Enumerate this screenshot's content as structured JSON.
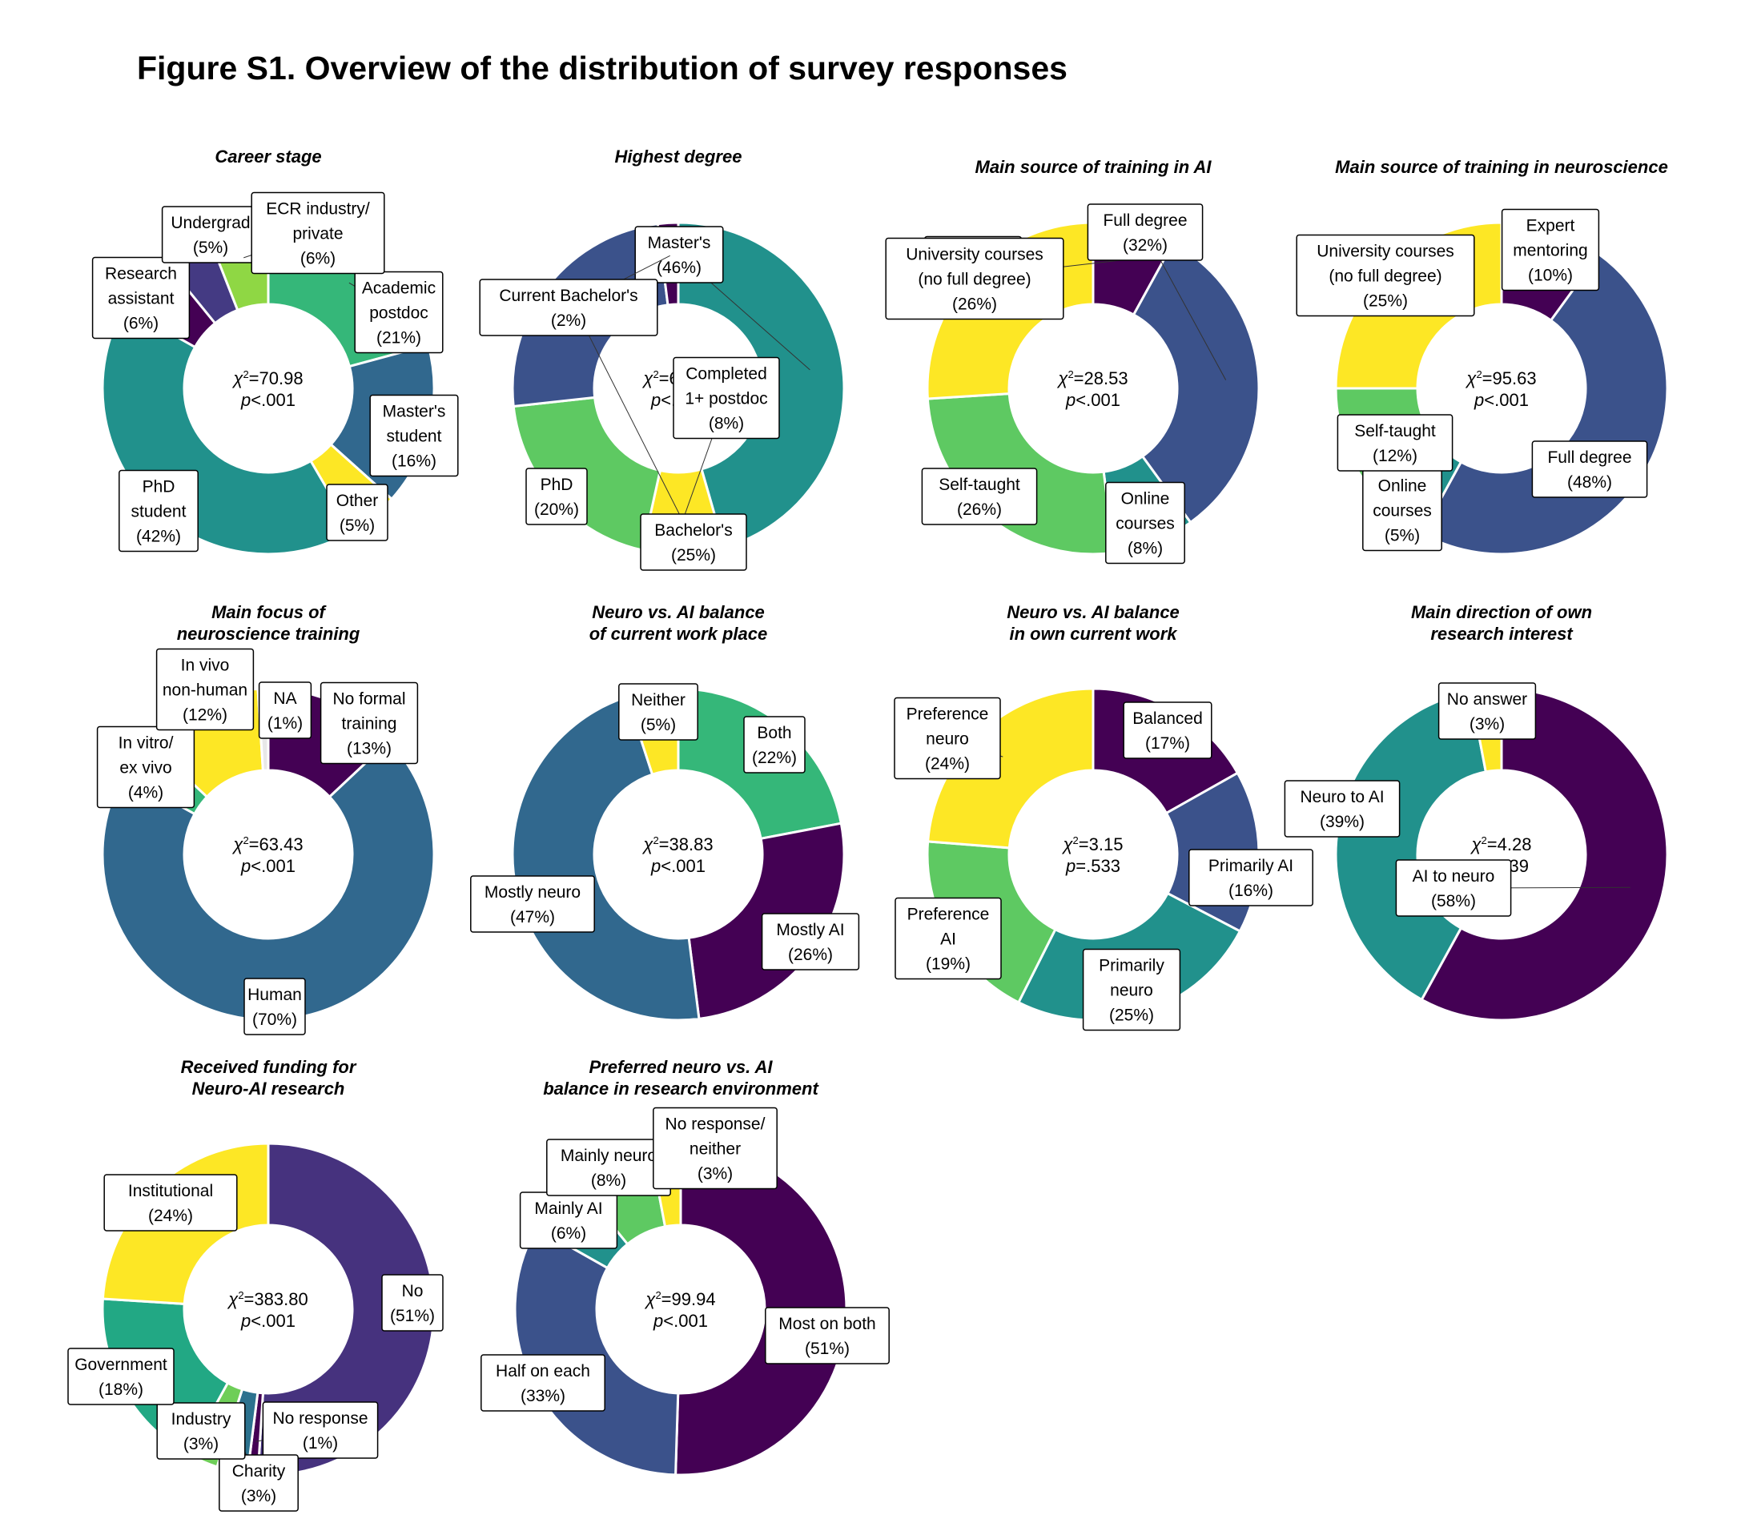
{
  "figure_title": "Figure S1. Overview of the distribution of survey responses",
  "chart_data": [
    {
      "type": "pie",
      "title_lines": [
        "Career stage"
      ],
      "stat": {
        "chi2": "70.98",
        "p": "<.001"
      },
      "slices": [
        {
          "label_lines": [
            "Academic",
            "postdoc"
          ],
          "pct_text": "(21%)",
          "value": 21,
          "color": "#35b779"
        },
        {
          "label_lines": [
            "Master's",
            "student"
          ],
          "pct_text": "(16%)",
          "value": 16,
          "color": "#31688e"
        },
        {
          "label_lines": [
            "Other"
          ],
          "pct_text": "(5%)",
          "value": 5,
          "color": "#fde725"
        },
        {
          "label_lines": [
            "PhD",
            "student"
          ],
          "pct_text": "(42%)",
          "value": 42,
          "color": "#21918c"
        },
        {
          "label_lines": [
            "Research",
            "assistant"
          ],
          "pct_text": "(6%)",
          "value": 6,
          "color": "#440154"
        },
        {
          "label_lines": [
            "Undergrad"
          ],
          "pct_text": "(5%)",
          "value": 5,
          "color": "#443a83"
        },
        {
          "label_lines": [
            "ECR industry/",
            "private"
          ],
          "pct_text": "(6%)",
          "value": 6,
          "color": "#8fd744"
        }
      ]
    },
    {
      "type": "pie",
      "title_lines": [
        "Highest degree"
      ],
      "stat": {
        "chi2": "63.15",
        "p": "<.001"
      },
      "slices": [
        {
          "label_lines": [
            "Master's"
          ],
          "pct_text": "(46%)",
          "value": 46,
          "color": "#21918c"
        },
        {
          "label_lines": [
            "Completed",
            "1+ postdoc"
          ],
          "pct_text": "(8%)",
          "value": 8,
          "color": "#fde725"
        },
        {
          "label_lines": [
            "PhD"
          ],
          "pct_text": "(20%)",
          "value": 20,
          "color": "#5ec962"
        },
        {
          "label_lines": [
            "Bachelor's"
          ],
          "pct_text": "(25%)",
          "value": 25,
          "color": "#3b528b"
        },
        {
          "label_lines": [
            "Current Bachelor's"
          ],
          "pct_text": "(2%)",
          "value": 2,
          "color": "#440154"
        }
      ]
    },
    {
      "type": "pie",
      "title_lines": [
        "Main source of training in AI"
      ],
      "stat": {
        "chi2": "28.53",
        "p": "<.001"
      },
      "slices": [
        {
          "label_lines": [
            "Expert",
            "mentoring"
          ],
          "pct_text": "(8%)",
          "value": 8,
          "color": "#440154"
        },
        {
          "label_lines": [
            "Full degree"
          ],
          "pct_text": "(32%)",
          "value": 32,
          "color": "#3b528b"
        },
        {
          "label_lines": [
            "Online",
            "courses"
          ],
          "pct_text": "(8%)",
          "value": 8,
          "color": "#21918c"
        },
        {
          "label_lines": [
            "Self-taught"
          ],
          "pct_text": "(26%)",
          "value": 26,
          "color": "#5ec962"
        },
        {
          "label_lines": [
            "University courses",
            "(no full degree)"
          ],
          "pct_text": "(26%)",
          "value": 26,
          "color": "#fde725"
        }
      ]
    },
    {
      "type": "pie",
      "title_lines": [
        "Main source of training in neuroscience"
      ],
      "stat": {
        "chi2": "95.63",
        "p": "<.001"
      },
      "slices": [
        {
          "label_lines": [
            "Expert",
            "mentoring"
          ],
          "pct_text": "(10%)",
          "value": 10,
          "color": "#440154"
        },
        {
          "label_lines": [
            "Full degree"
          ],
          "pct_text": "(48%)",
          "value": 48,
          "color": "#3b528b"
        },
        {
          "label_lines": [
            "Online",
            "courses"
          ],
          "pct_text": "(5%)",
          "value": 5,
          "color": "#21918c"
        },
        {
          "label_lines": [
            "Self-taught"
          ],
          "pct_text": "(12%)",
          "value": 12,
          "color": "#5ec962"
        },
        {
          "label_lines": [
            "University courses",
            "(no full degree)"
          ],
          "pct_text": "(25%)",
          "value": 25,
          "color": "#fde725"
        }
      ]
    },
    {
      "type": "pie",
      "title_lines": [
        "Main focus of",
        "neuroscience training"
      ],
      "stat": {
        "chi2": "63.43",
        "p": "<.001"
      },
      "slices": [
        {
          "label_lines": [
            "No formal",
            "training"
          ],
          "pct_text": "(13%)",
          "value": 13,
          "color": "#440154"
        },
        {
          "label_lines": [
            "Human"
          ],
          "pct_text": "(70%)",
          "value": 70,
          "color": "#31688e"
        },
        {
          "label_lines": [
            "In vitro/",
            "ex vivo"
          ],
          "pct_text": "(4%)",
          "value": 4,
          "color": "#35b779"
        },
        {
          "label_lines": [
            "In vivo",
            "non-human"
          ],
          "pct_text": "(12%)",
          "value": 12,
          "color": "#fde725"
        },
        {
          "label_lines": [
            "NA"
          ],
          "pct_text": "(1%)",
          "value": 1,
          "color": "#e8e8e8"
        }
      ]
    },
    {
      "type": "pie",
      "title_lines": [
        "Neuro vs. AI balance",
        "of current work place"
      ],
      "stat": {
        "chi2": "38.83",
        "p": "<.001"
      },
      "slices": [
        {
          "label_lines": [
            "Both"
          ],
          "pct_text": "(22%)",
          "value": 22,
          "color": "#35b779"
        },
        {
          "label_lines": [
            "Mostly AI"
          ],
          "pct_text": "(26%)",
          "value": 26,
          "color": "#440154"
        },
        {
          "label_lines": [
            "Mostly neuro"
          ],
          "pct_text": "(47%)",
          "value": 47,
          "color": "#31688e"
        },
        {
          "label_lines": [
            "Neither"
          ],
          "pct_text": "(5%)",
          "value": 5,
          "color": "#fde725"
        }
      ]
    },
    {
      "type": "pie",
      "title_lines": [
        "Neuro vs. AI balance",
        "in own current work"
      ],
      "stat": {
        "chi2": "3.15",
        "p": "=.533"
      },
      "slices": [
        {
          "label_lines": [
            "Balanced"
          ],
          "pct_text": "(17%)",
          "value": 17,
          "color": "#440154"
        },
        {
          "label_lines": [
            "Primarily AI"
          ],
          "pct_text": "(16%)",
          "value": 16,
          "color": "#3b528b"
        },
        {
          "label_lines": [
            "Primarily",
            "neuro"
          ],
          "pct_text": "(25%)",
          "value": 25,
          "color": "#21918c"
        },
        {
          "label_lines": [
            "Preference",
            "AI"
          ],
          "pct_text": "(19%)",
          "value": 19,
          "color": "#5ec962"
        },
        {
          "label_lines": [
            "Preference",
            "neuro"
          ],
          "pct_text": "(24%)",
          "value": 24,
          "color": "#fde725"
        }
      ]
    },
    {
      "type": "pie",
      "title_lines": [
        "Main direction of own",
        "research interest"
      ],
      "stat": {
        "chi2": "4.28",
        "p": "=.039"
      },
      "slices": [
        {
          "label_lines": [
            "AI to neuro"
          ],
          "pct_text": "(58%)",
          "value": 58,
          "color": "#440154"
        },
        {
          "label_lines": [
            "Neuro to AI"
          ],
          "pct_text": "(39%)",
          "value": 39,
          "color": "#21918c"
        },
        {
          "label_lines": [
            "No answer"
          ],
          "pct_text": "(3%)",
          "value": 3,
          "color": "#fde725"
        }
      ]
    },
    {
      "type": "pie",
      "title_lines": [
        "Received funding for",
        "Neuro-AI research"
      ],
      "stat": {
        "chi2": "383.80",
        "p": "<.001"
      },
      "slices": [
        {
          "label_lines": [
            "No"
          ],
          "pct_text": "(51%)",
          "value": 51,
          "color": "#46327e"
        },
        {
          "label_lines": [
            "No response"
          ],
          "pct_text": "(1%)",
          "value": 1,
          "color": "#440154"
        },
        {
          "label_lines": [
            "Charity"
          ],
          "pct_text": "(3%)",
          "value": 3,
          "color": "#2c728e"
        },
        {
          "label_lines": [
            "Industry"
          ],
          "pct_text": "(3%)",
          "value": 3,
          "color": "#6ece58"
        },
        {
          "label_lines": [
            "Government"
          ],
          "pct_text": "(18%)",
          "value": 18,
          "color": "#22a884"
        },
        {
          "label_lines": [
            "Institutional"
          ],
          "pct_text": "(24%)",
          "value": 24,
          "color": "#fde725"
        }
      ]
    },
    {
      "type": "pie",
      "title_lines": [
        "Preferred neuro vs. AI",
        "balance in research environment"
      ],
      "stat": {
        "chi2": "99.94",
        "p": "<.001"
      },
      "slices": [
        {
          "label_lines": [
            "Most on both"
          ],
          "pct_text": "(51%)",
          "value": 51,
          "color": "#440154"
        },
        {
          "label_lines": [
            "Half on each"
          ],
          "pct_text": "(33%)",
          "value": 33,
          "color": "#3b528b"
        },
        {
          "label_lines": [
            "Mainly AI"
          ],
          "pct_text": "(6%)",
          "value": 6,
          "color": "#21918c"
        },
        {
          "label_lines": [
            "Mainly neuro"
          ],
          "pct_text": "(8%)",
          "value": 8,
          "color": "#5ec962"
        },
        {
          "label_lines": [
            "No response/",
            "neither"
          ],
          "pct_text": "(3%)",
          "value": 3,
          "color": "#fde725"
        }
      ]
    }
  ]
}
